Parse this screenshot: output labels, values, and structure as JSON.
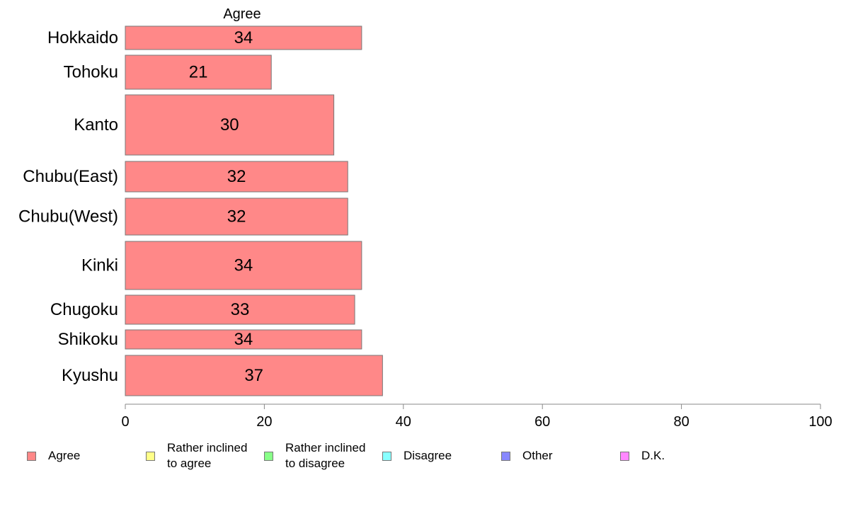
{
  "chart_data": {
    "type": "bar",
    "orientation": "horizontal",
    "series_header": "Agree",
    "categories": [
      "Hokkaido",
      "Tohoku",
      "Kanto",
      "Chubu(East)",
      "Chubu(West)",
      "Kinki",
      "Chugoku",
      "Shikoku",
      "Kyushu"
    ],
    "values": [
      34,
      21,
      30,
      32,
      32,
      34,
      33,
      34,
      37
    ],
    "value_labels": [
      "34",
      "21",
      "30",
      "32",
      "32",
      "34",
      "33",
      "34",
      "37"
    ],
    "xlim": [
      0,
      100
    ],
    "x_ticks": [
      "0",
      "20",
      "40",
      "60",
      "80",
      "100"
    ],
    "grid": false,
    "bar_color": "#ff8888",
    "legend_position": "bottom",
    "legend": [
      {
        "lines": [
          "Agree"
        ],
        "color": "#ff8888"
      },
      {
        "lines": [
          "Rather inclined",
          "to agree"
        ],
        "color": "#ffff88"
      },
      {
        "lines": [
          "Rather inclined",
          "to disagree"
        ],
        "color": "#88ff88"
      },
      {
        "lines": [
          "Disagree"
        ],
        "color": "#88ffff"
      },
      {
        "lines": [
          "Other"
        ],
        "color": "#8888ff"
      },
      {
        "lines": [
          "D.K."
        ],
        "color": "#ff88ff"
      }
    ]
  }
}
